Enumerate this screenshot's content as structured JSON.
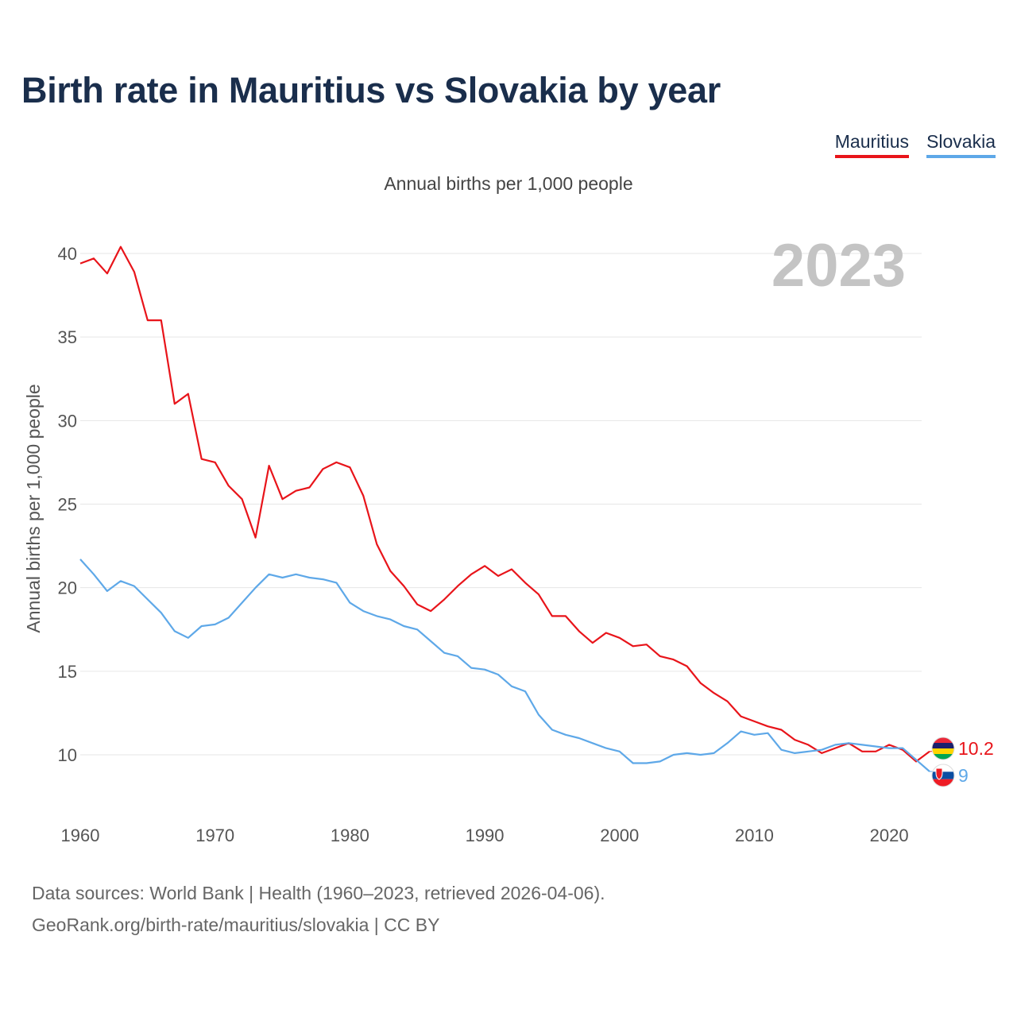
{
  "title": "Birth rate in Mauritius vs Slovakia by year",
  "subtitle": "Annual births per 1,000 people",
  "legend": [
    {
      "name": "Mauritius",
      "color": "#e8141a"
    },
    {
      "name": "Slovakia",
      "color": "#5ea8e8"
    }
  ],
  "year_watermark": "2023",
  "footer": {
    "line1": "Data sources: World Bank | Health (1960–2023, retrieved 2026-04-06).",
    "line2": "GeoRank.org/birth-rate/mauritius/slovakia | CC BY"
  },
  "chart_data": {
    "type": "line",
    "title": "Birth rate in Mauritius vs Slovakia by year",
    "xlabel": "",
    "ylabel": "Annual births per 1,000 people",
    "xlim": [
      1960,
      2024
    ],
    "ylim": [
      7.5,
      41
    ],
    "x_ticks": [
      1960,
      1970,
      1980,
      1990,
      2000,
      2010,
      2020
    ],
    "y_ticks": [
      10,
      15,
      20,
      25,
      30,
      35,
      40
    ],
    "grid": true,
    "x": [
      1960,
      1961,
      1962,
      1963,
      1964,
      1965,
      1966,
      1967,
      1968,
      1969,
      1970,
      1971,
      1972,
      1973,
      1974,
      1975,
      1976,
      1977,
      1978,
      1979,
      1980,
      1981,
      1982,
      1983,
      1984,
      1985,
      1986,
      1987,
      1988,
      1989,
      1990,
      1991,
      1992,
      1993,
      1994,
      1995,
      1996,
      1997,
      1998,
      1999,
      2000,
      2001,
      2002,
      2003,
      2004,
      2005,
      2006,
      2007,
      2008,
      2009,
      2010,
      2011,
      2012,
      2013,
      2014,
      2015,
      2016,
      2017,
      2018,
      2019,
      2020,
      2021,
      2022,
      2023
    ],
    "series": [
      {
        "name": "Mauritius",
        "color": "#e8141a",
        "end_label": "10.2",
        "values": [
          39.4,
          39.7,
          38.8,
          40.4,
          38.9,
          36.0,
          36.0,
          31.0,
          31.6,
          27.7,
          27.5,
          26.1,
          25.3,
          23.0,
          27.3,
          25.3,
          25.8,
          26.0,
          27.1,
          27.5,
          27.2,
          25.5,
          22.6,
          21.0,
          20.1,
          19.0,
          18.6,
          19.3,
          20.1,
          20.8,
          21.3,
          20.7,
          21.1,
          20.3,
          19.6,
          18.3,
          18.3,
          17.4,
          16.7,
          17.3,
          17.0,
          16.5,
          16.6,
          15.9,
          15.7,
          15.3,
          14.3,
          13.7,
          13.2,
          12.3,
          12.0,
          11.7,
          11.5,
          10.9,
          10.6,
          10.1,
          10.4,
          10.7,
          10.2,
          10.2,
          10.6,
          10.3,
          9.6,
          10.2
        ]
      },
      {
        "name": "Slovakia",
        "color": "#5ea8e8",
        "end_label": "9",
        "values": [
          21.7,
          20.8,
          19.8,
          20.4,
          20.1,
          19.3,
          18.5,
          17.4,
          17.0,
          17.7,
          17.8,
          18.2,
          19.1,
          20.0,
          20.8,
          20.6,
          20.8,
          20.6,
          20.5,
          20.3,
          19.1,
          18.6,
          18.3,
          18.1,
          17.7,
          17.5,
          16.8,
          16.1,
          15.9,
          15.2,
          15.1,
          14.8,
          14.1,
          13.8,
          12.4,
          11.5,
          11.2,
          11.0,
          10.7,
          10.4,
          10.2,
          9.5,
          9.5,
          9.6,
          10.0,
          10.1,
          10.0,
          10.1,
          10.7,
          11.4,
          11.2,
          11.3,
          10.3,
          10.1,
          10.2,
          10.3,
          10.6,
          10.7,
          10.6,
          10.5,
          10.4,
          10.4,
          9.7,
          9.0
        ]
      }
    ]
  }
}
